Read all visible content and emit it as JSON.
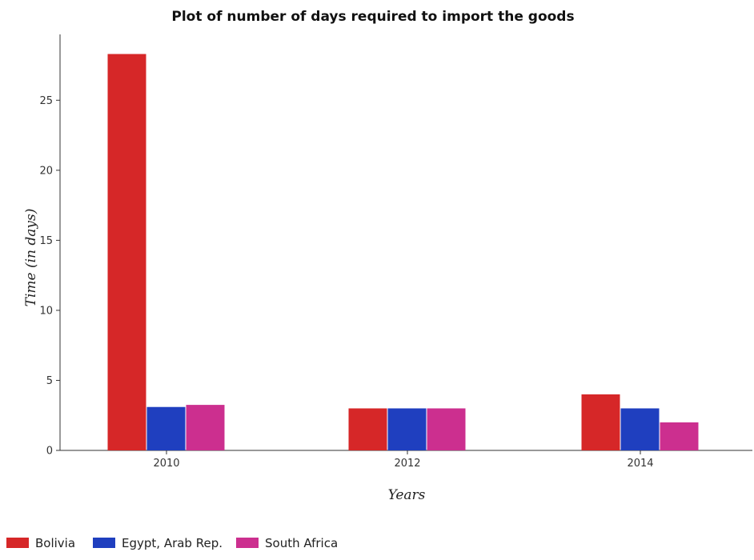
{
  "chart_data": {
    "type": "bar",
    "title": "Plot of number of days required to import the goods",
    "xlabel": "Years",
    "ylabel": "Time (in days)",
    "categories": [
      "2010",
      "2012",
      "2014"
    ],
    "series": [
      {
        "name": "Bolivia",
        "values": [
          28.3,
          3,
          4
        ],
        "color": "#d62728"
      },
      {
        "name": "Egypt, Arab Rep.",
        "values": [
          3.1,
          3,
          3
        ],
        "color": "#1f3fbf"
      },
      {
        "name": "South Africa",
        "values": [
          3.25,
          3,
          2
        ],
        "color": "#cc2f8f"
      }
    ],
    "ylim": [
      0,
      29.7
    ],
    "yticks": [
      0,
      5,
      10,
      15,
      20,
      25
    ],
    "grid": false,
    "legend_position": "bottom-left"
  }
}
